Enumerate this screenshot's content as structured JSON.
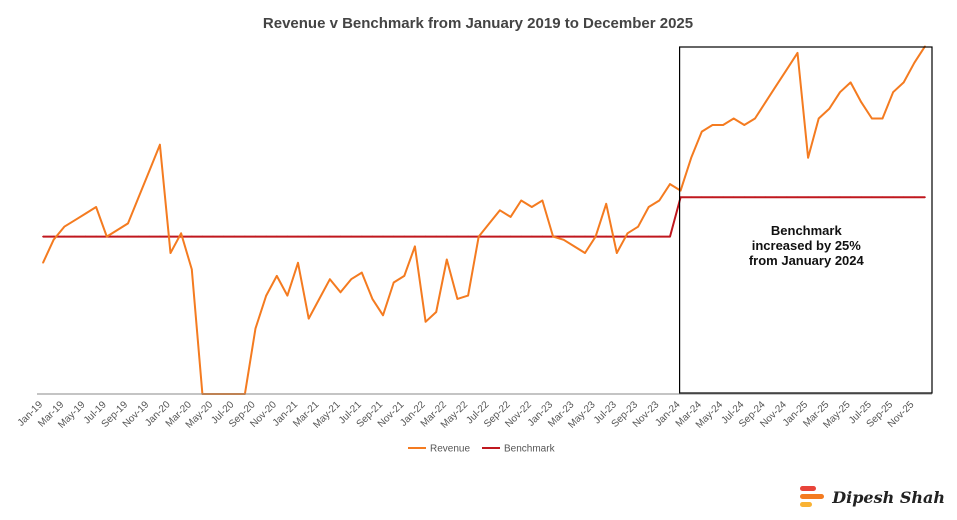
{
  "chart_data": {
    "type": "line",
    "title": "Revenue v Benchmark from January 2019 to December 2025",
    "x_tick_labels": [
      "Jan-19",
      "Mar-19",
      "May-19",
      "Jul-19",
      "Sep-19",
      "Nov-19",
      "Jan-20",
      "Mar-20",
      "May-20",
      "Jul-20",
      "Sep-20",
      "Nov-20",
      "Jan-21",
      "Mar-21",
      "May-21",
      "Jul-21",
      "Sep-21",
      "Nov-21",
      "Jan-22",
      "Mar-22",
      "May-22",
      "Jul-22",
      "Sep-22",
      "Nov-22",
      "Jan-23",
      "Mar-23",
      "May-23",
      "Jul-23",
      "Sep-23",
      "Nov-23",
      "Jan-24",
      "Mar-24",
      "May-24",
      "Jul-24",
      "Sep-24",
      "Nov-24",
      "Jan-25",
      "Mar-25",
      "May-25",
      "Jul-25",
      "Sep-25",
      "Nov-25"
    ],
    "x_start": "2019-01",
    "x_end": "2025-12",
    "ylim": [
      0,
      100
    ],
    "series": [
      {
        "name": "Revenue",
        "color": "#f47b20",
        "values": [
          40,
          47,
          51,
          53,
          55,
          57,
          48,
          50,
          52,
          60,
          68,
          76,
          43,
          49,
          38,
          0,
          0,
          0,
          0,
          0,
          20,
          30,
          36,
          30,
          40,
          23,
          29,
          35,
          31,
          35,
          37,
          29,
          24,
          34,
          36,
          45,
          22,
          25,
          41,
          29,
          30,
          48,
          52,
          56,
          54,
          59,
          57,
          59,
          48,
          47,
          45,
          43,
          48,
          58,
          43,
          49,
          51,
          57,
          59,
          64,
          62,
          72,
          80,
          82,
          82,
          84,
          82,
          84,
          89,
          94,
          99,
          104,
          72,
          84,
          87,
          92,
          95,
          89,
          84,
          84,
          92,
          95,
          101,
          106
        ],
        "annotation": ""
      },
      {
        "name": "Benchmark",
        "color": "#c0181f",
        "values": [
          48,
          48,
          48,
          48,
          48,
          48,
          48,
          48,
          48,
          48,
          48,
          48,
          48,
          48,
          48,
          48,
          48,
          48,
          48,
          48,
          48,
          48,
          48,
          48,
          48,
          48,
          48,
          48,
          48,
          48,
          48,
          48,
          48,
          48,
          48,
          48,
          48,
          48,
          48,
          48,
          48,
          48,
          48,
          48,
          48,
          48,
          48,
          48,
          48,
          48,
          48,
          48,
          48,
          48,
          48,
          48,
          48,
          48,
          48,
          48,
          60,
          60,
          60,
          60,
          60,
          60,
          60,
          60,
          60,
          60,
          60,
          60,
          60,
          60,
          60,
          60,
          60,
          60,
          60,
          60,
          60,
          60,
          60,
          60
        ]
      }
    ],
    "annotation": {
      "lines": [
        "Benchmark",
        "increased by 25%",
        "from January 2024"
      ],
      "box_color": "#000000"
    },
    "legend": {
      "placement": "bottom-center",
      "items": [
        "Revenue",
        "Benchmark"
      ]
    },
    "grid": false
  },
  "brand": {
    "name": "Dipesh Shah",
    "colors": [
      "#e8443a",
      "#f47b20",
      "#f9b233"
    ]
  }
}
